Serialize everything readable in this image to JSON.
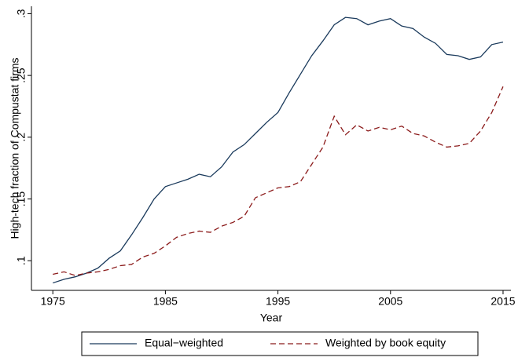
{
  "chart_data": {
    "type": "line",
    "x_label": "Year",
    "y_label": "High-tech fraction of Compustat firms",
    "x": [
      1975,
      1976,
      1977,
      1978,
      1979,
      1980,
      1981,
      1982,
      1983,
      1984,
      1985,
      1986,
      1987,
      1988,
      1989,
      1990,
      1991,
      1992,
      1993,
      1994,
      1995,
      1996,
      1997,
      1998,
      1999,
      2000,
      2001,
      2002,
      2003,
      2004,
      2005,
      2006,
      2007,
      2008,
      2009,
      2010,
      2011,
      2012,
      2013,
      2014,
      2015
    ],
    "series": [
      {
        "name": "Equal−weighted",
        "color": "#1a3a5c",
        "dash": "solid",
        "values": [
          0.082,
          0.085,
          0.087,
          0.09,
          0.094,
          0.102,
          0.108,
          0.121,
          0.135,
          0.15,
          0.16,
          0.163,
          0.166,
          0.17,
          0.168,
          0.176,
          0.188,
          0.194,
          0.203,
          0.212,
          0.22,
          0.236,
          0.251,
          0.266,
          0.278,
          0.291,
          0.297,
          0.296,
          0.291,
          0.294,
          0.296,
          0.29,
          0.288,
          0.281,
          0.276,
          0.267,
          0.266,
          0.263,
          0.265,
          0.275,
          0.277
        ]
      },
      {
        "name": "Weighted by book equity",
        "color": "#8b1a1a",
        "dash": "dashed",
        "values": [
          0.089,
          0.091,
          0.088,
          0.09,
          0.091,
          0.093,
          0.096,
          0.097,
          0.103,
          0.106,
          0.112,
          0.119,
          0.122,
          0.124,
          0.123,
          0.128,
          0.131,
          0.136,
          0.151,
          0.155,
          0.159,
          0.16,
          0.164,
          0.178,
          0.192,
          0.217,
          0.202,
          0.21,
          0.205,
          0.208,
          0.206,
          0.209,
          0.203,
          0.201,
          0.196,
          0.192,
          0.193,
          0.195,
          0.205,
          0.22,
          0.241
        ]
      }
    ],
    "xlim": [
      1973.1,
      2015.7
    ],
    "xticks": [
      1975,
      1985,
      1995,
      2005,
      2015
    ],
    "ylim": [
      0.076,
      0.306
    ],
    "yticks": [
      {
        "value": 0.1,
        "label": ".1"
      },
      {
        "value": 0.15,
        "label": ".15"
      },
      {
        "value": 0.2,
        "label": ".2"
      },
      {
        "value": 0.25,
        "label": ".25"
      },
      {
        "value": 0.3,
        "label": ".3"
      }
    ],
    "legend": "bottom"
  }
}
